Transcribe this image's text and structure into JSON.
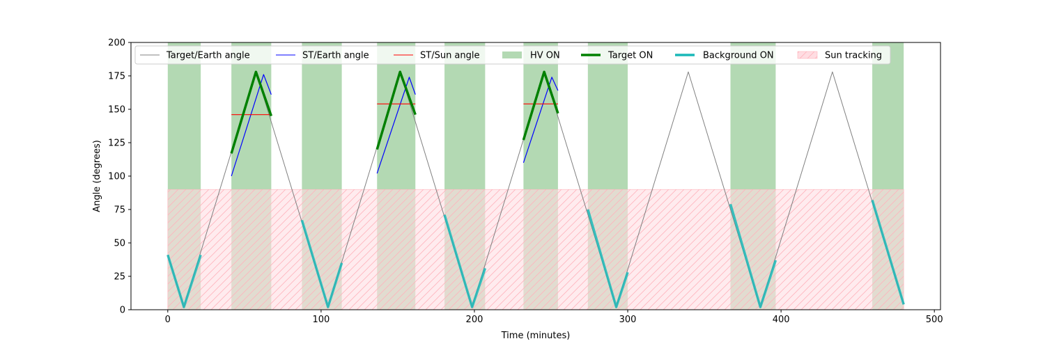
{
  "chart_data": {
    "type": "line",
    "title": "",
    "xlabel": "Time (minutes)",
    "ylabel": "Angle (degrees)",
    "xlim": [
      -24,
      504
    ],
    "ylim": [
      0,
      200
    ],
    "xticks": [
      0,
      100,
      200,
      300,
      400,
      500
    ],
    "yticks": [
      0,
      25,
      50,
      75,
      100,
      125,
      150,
      175,
      200
    ],
    "legend_position": "top",
    "colors": {
      "target_earth": "#808080",
      "st_earth": "#0000ff",
      "st_sun": "#ff0000",
      "hv_on": "#b3d9b3",
      "target_on": "#008000",
      "background_on": "#1ab8b8",
      "sun_tracking": "#ffdde2",
      "sun_hatch": "#ffb3bc"
    },
    "legend": {
      "target_earth": "Target/Earth angle",
      "st_earth": "ST/Earth angle",
      "st_sun": "ST/Sun angle",
      "hv_on": "HV ON",
      "target_on": "Target ON",
      "background_on": "Background ON",
      "sun_tracking": "Sun tracking"
    },
    "series": [
      {
        "name": "Target/Earth angle",
        "x": [
          0,
          10.5,
          57.5,
          104.5,
          151.5,
          198.5,
          245.5,
          292.5,
          339.5,
          386.5,
          433.5,
          480
        ],
        "values": [
          41,
          2,
          178,
          2,
          178,
          2,
          178,
          2,
          178,
          2,
          178,
          4
        ]
      },
      {
        "name": "ST/Earth angle",
        "segments": [
          {
            "x": [
              41.5,
              62.5,
              67.5
            ],
            "values": [
              100,
              176,
              161
            ]
          },
          {
            "x": [
              136.5,
              157.5,
              161.5
            ],
            "values": [
              102,
              174,
              161
            ]
          },
          {
            "x": [
              232,
              250.5,
              254.5
            ],
            "values": [
              110,
              174,
              164
            ]
          }
        ]
      },
      {
        "name": "ST/Sun angle",
        "segments": [
          {
            "x": [
              41.5,
              67.5
            ],
            "values": [
              146,
              146
            ]
          },
          {
            "x": [
              136.5,
              161.5
            ],
            "values": [
              154,
              154
            ]
          },
          {
            "x": [
              232,
              254.5
            ],
            "values": [
              154,
              154
            ]
          }
        ]
      },
      {
        "name": "Target ON",
        "segments": [
          {
            "x": [
              41.5,
              57.5,
              67.5
            ],
            "values": [
              117,
              178,
              145
            ]
          },
          {
            "x": [
              136.5,
              151.5,
              161.5
            ],
            "values": [
              120,
              178,
              146
            ]
          },
          {
            "x": [
              232,
              245.5,
              254.5
            ],
            "values": [
              127,
              178,
              147
            ]
          }
        ]
      },
      {
        "name": "Background ON",
        "segments": [
          {
            "x": [
              0,
              10.5,
              21.5
            ],
            "values": [
              41,
              2,
              41
            ]
          },
          {
            "x": [
              87.5,
              104.5,
              113.5
            ],
            "values": [
              67,
              2,
              35
            ]
          },
          {
            "x": [
              180.5,
              198.5,
              207
            ],
            "values": [
              71,
              2,
              31
            ]
          },
          {
            "x": [
              274,
              292.5,
              300
            ],
            "values": [
              75,
              2,
              28
            ]
          },
          {
            "x": [
              367,
              386.5,
              396.5
            ],
            "values": [
              79,
              2,
              37
            ]
          },
          {
            "x": [
              459.5,
              480
            ],
            "values": [
              82,
              4
            ]
          }
        ]
      }
    ],
    "hv_on_intervals": [
      [
        0,
        21.5
      ],
      [
        41.5,
        67.5
      ],
      [
        87.5,
        113.5
      ],
      [
        136.5,
        161.5
      ],
      [
        180.5,
        207
      ],
      [
        232,
        254.5
      ],
      [
        274,
        300
      ],
      [
        367,
        396.5
      ],
      [
        459.5,
        480
      ]
    ],
    "sun_tracking": {
      "y_max": 90,
      "intervals": [
        [
          0,
          480
        ]
      ]
    }
  }
}
